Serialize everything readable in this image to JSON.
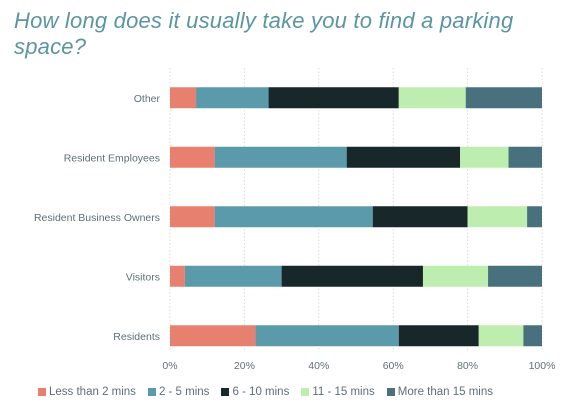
{
  "chart_data": {
    "type": "bar",
    "orientation": "horizontal",
    "stacked": true,
    "title": "How long does it usually take you to find a parking space?",
    "categories": [
      "Other",
      "Resident Employees",
      "Resident Business Owners",
      "Visitors",
      "Residents"
    ],
    "x_ticks": [
      "0%",
      "20%",
      "40%",
      "60%",
      "80%",
      "100%"
    ],
    "xlim": [
      0,
      100
    ],
    "grid": true,
    "legend_position": "bottom",
    "series": [
      {
        "name": "Less than 2 mins",
        "color": "#e8806f",
        "values": [
          7,
          12,
          12,
          4,
          23
        ]
      },
      {
        "name": "2 - 5 mins",
        "color": "#5b9aab",
        "values": [
          19.5,
          35.5,
          42.5,
          26,
          38.5
        ]
      },
      {
        "name": "6 - 10 mins",
        "color": "#18272a",
        "values": [
          35,
          30.5,
          25.5,
          38,
          21.5
        ]
      },
      {
        "name": "11 - 15 mins",
        "color": "#bdeeb0",
        "values": [
          18,
          13,
          16,
          17.5,
          12
        ]
      },
      {
        "name": "More than 15 mins",
        "color": "#48707d",
        "values": [
          20.5,
          9,
          4,
          14.5,
          5
        ]
      }
    ]
  }
}
